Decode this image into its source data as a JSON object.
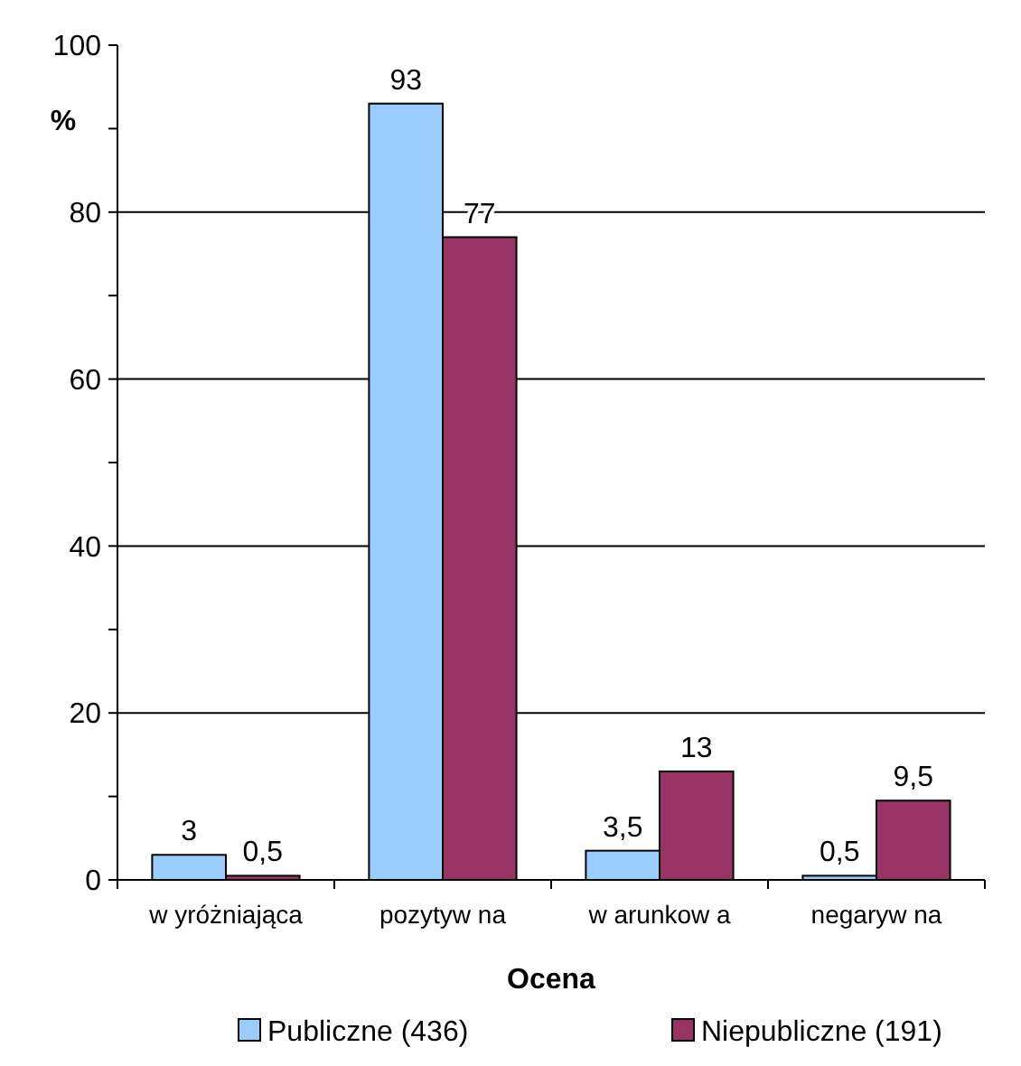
{
  "chart_data": {
    "type": "bar",
    "xlabel": "Ocena",
    "ylabel": "%",
    "categories": [
      "w yróżniająca",
      "pozytyw na",
      "w arunkow a",
      "negaryw na"
    ],
    "series": [
      {
        "name": "Publiczne (436)",
        "color": "#99ccff",
        "values": [
          3,
          93,
          3.5,
          0.5
        ],
        "value_labels": [
          "3",
          "93",
          "3,5",
          "0,5"
        ]
      },
      {
        "name": "Niepubliczne (191)",
        "color": "#993366",
        "values": [
          0.5,
          77,
          13,
          9.5
        ],
        "value_labels": [
          "0,5",
          "77",
          "13",
          "9,5"
        ]
      }
    ],
    "ylim": [
      0,
      100
    ],
    "yticks": [
      0,
      {
        "value": 10,
        "label": null
      },
      20,
      {
        "value": 30,
        "label": null
      },
      40,
      {
        "value": 50,
        "label": null
      },
      60,
      {
        "value": 70,
        "label": null
      },
      80,
      {
        "value": 90,
        "label": null
      },
      100
    ],
    "grid": "y",
    "legend": "bottom"
  }
}
